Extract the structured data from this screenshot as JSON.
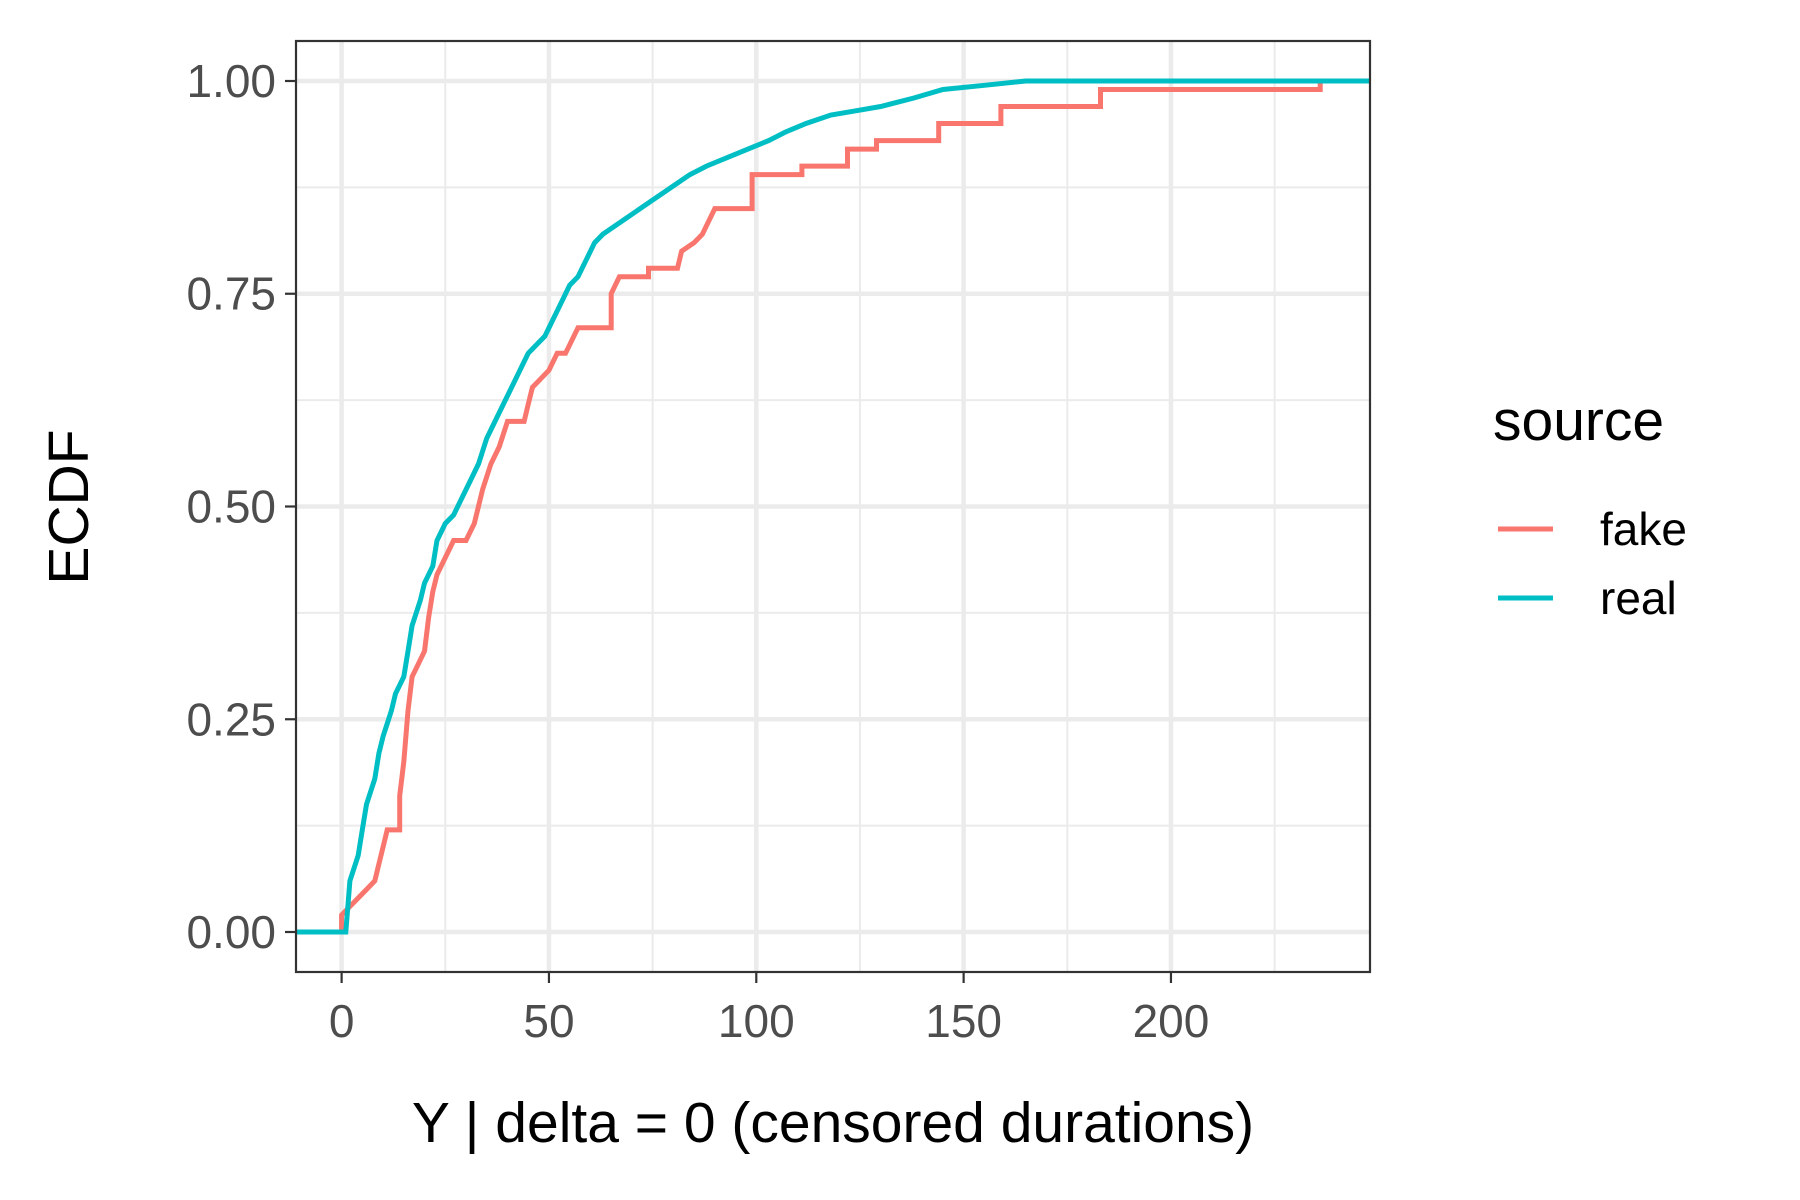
{
  "chart_data": {
    "type": "line",
    "step": true,
    "xlabel": "Y | delta = 0 (censored durations)",
    "ylabel": "ECDF",
    "xlim": [
      -11,
      248
    ],
    "ylim": [
      -0.047,
      1.047
    ],
    "x_ticks": [
      0,
      50,
      100,
      150,
      200
    ],
    "y_ticks": [
      0,
      0.25,
      0.5,
      0.75,
      1
    ],
    "x_tick_labels": [
      "0",
      "50",
      "100",
      "150",
      "200"
    ],
    "y_tick_labels": [
      "0.00",
      "0.25",
      "0.50",
      "0.75",
      "1.00"
    ],
    "x_minor_ticks": [
      25,
      75,
      125,
      175,
      225
    ],
    "y_minor_ticks": [
      0.125,
      0.375,
      0.625,
      0.875
    ],
    "grid": true,
    "legend": {
      "title": "source",
      "position": "right",
      "items": [
        {
          "label": "fake",
          "color": "#F8766D"
        },
        {
          "label": "real",
          "color": "#00BFC4"
        }
      ]
    },
    "series": [
      {
        "name": "fake",
        "color": "#F8766D",
        "points": [
          [
            -11,
            0
          ],
          [
            0,
            0
          ],
          [
            0,
            0.02
          ],
          [
            2,
            0.03
          ],
          [
            4,
            0.04
          ],
          [
            6,
            0.05
          ],
          [
            8,
            0.06
          ],
          [
            9,
            0.08
          ],
          [
            10,
            0.1
          ],
          [
            11,
            0.12
          ],
          [
            14,
            0.12
          ],
          [
            14,
            0.16
          ],
          [
            15,
            0.2
          ],
          [
            16,
            0.26
          ],
          [
            17,
            0.3
          ],
          [
            18,
            0.31
          ],
          [
            20,
            0.33
          ],
          [
            21,
            0.37
          ],
          [
            22,
            0.4
          ],
          [
            23,
            0.42
          ],
          [
            25,
            0.44
          ],
          [
            27,
            0.46
          ],
          [
            30,
            0.46
          ],
          [
            32,
            0.48
          ],
          [
            34,
            0.52
          ],
          [
            36,
            0.55
          ],
          [
            38,
            0.57
          ],
          [
            40,
            0.6
          ],
          [
            44,
            0.6
          ],
          [
            45,
            0.62
          ],
          [
            46,
            0.64
          ],
          [
            48,
            0.65
          ],
          [
            50,
            0.66
          ],
          [
            52,
            0.68
          ],
          [
            54,
            0.68
          ],
          [
            55,
            0.69
          ],
          [
            56,
            0.7
          ],
          [
            57,
            0.71
          ],
          [
            65,
            0.71
          ],
          [
            65,
            0.75
          ],
          [
            67,
            0.77
          ],
          [
            74,
            0.77
          ],
          [
            74,
            0.78
          ],
          [
            81,
            0.78
          ],
          [
            82,
            0.8
          ],
          [
            85,
            0.81
          ],
          [
            87,
            0.82
          ],
          [
            88,
            0.83
          ],
          [
            90,
            0.85
          ],
          [
            99,
            0.85
          ],
          [
            99,
            0.89
          ],
          [
            111,
            0.89
          ],
          [
            111,
            0.9
          ],
          [
            122,
            0.9
          ],
          [
            122,
            0.92
          ],
          [
            129,
            0.92
          ],
          [
            129,
            0.93
          ],
          [
            144,
            0.93
          ],
          [
            144,
            0.95
          ],
          [
            159,
            0.95
          ],
          [
            159,
            0.97
          ],
          [
            183,
            0.97
          ],
          [
            183,
            0.99
          ],
          [
            236,
            0.99
          ],
          [
            236,
            1.0
          ]
        ]
      },
      {
        "name": "real",
        "color": "#00BFC4",
        "points": [
          [
            -11,
            0
          ],
          [
            1,
            0
          ],
          [
            2,
            0.06
          ],
          [
            4,
            0.09
          ],
          [
            5,
            0.12
          ],
          [
            6,
            0.15
          ],
          [
            8,
            0.18
          ],
          [
            9,
            0.21
          ],
          [
            10,
            0.23
          ],
          [
            12,
            0.26
          ],
          [
            13,
            0.28
          ],
          [
            15,
            0.3
          ],
          [
            16,
            0.33
          ],
          [
            17,
            0.36
          ],
          [
            19,
            0.39
          ],
          [
            20,
            0.41
          ],
          [
            22,
            0.43
          ],
          [
            23,
            0.46
          ],
          [
            25,
            0.48
          ],
          [
            27,
            0.49
          ],
          [
            29,
            0.51
          ],
          [
            31,
            0.53
          ],
          [
            33,
            0.55
          ],
          [
            35,
            0.58
          ],
          [
            37,
            0.6
          ],
          [
            39,
            0.62
          ],
          [
            41,
            0.64
          ],
          [
            43,
            0.66
          ],
          [
            45,
            0.68
          ],
          [
            47,
            0.69
          ],
          [
            49,
            0.7
          ],
          [
            51,
            0.72
          ],
          [
            53,
            0.74
          ],
          [
            55,
            0.76
          ],
          [
            57,
            0.77
          ],
          [
            59,
            0.79
          ],
          [
            61,
            0.81
          ],
          [
            63,
            0.82
          ],
          [
            66,
            0.83
          ],
          [
            69,
            0.84
          ],
          [
            72,
            0.85
          ],
          [
            75,
            0.86
          ],
          [
            78,
            0.87
          ],
          [
            81,
            0.88
          ],
          [
            84,
            0.89
          ],
          [
            88,
            0.9
          ],
          [
            93,
            0.91
          ],
          [
            98,
            0.92
          ],
          [
            103,
            0.93
          ],
          [
            107,
            0.94
          ],
          [
            112,
            0.95
          ],
          [
            118,
            0.96
          ],
          [
            124,
            0.965
          ],
          [
            130,
            0.97
          ],
          [
            138,
            0.98
          ],
          [
            145,
            0.99
          ],
          [
            155,
            0.995
          ],
          [
            165,
            1.0
          ],
          [
            248,
            1.0
          ]
        ]
      }
    ]
  }
}
